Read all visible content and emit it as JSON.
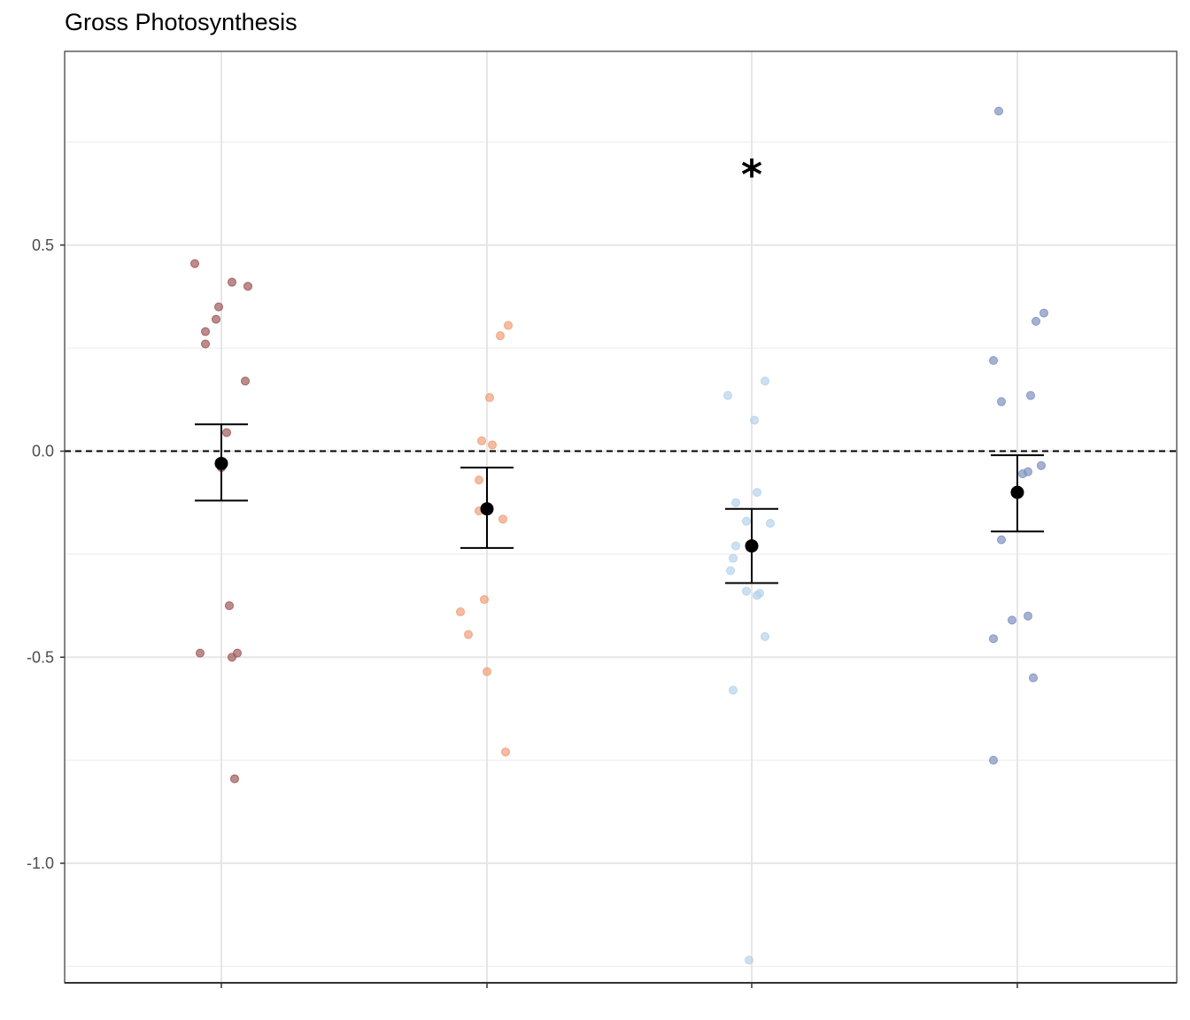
{
  "chart_data": {
    "type": "scatter",
    "title": "Gross Photosynthesis",
    "xlabel": "",
    "ylabel": "",
    "ylim": [
      -1.29,
      0.97
    ],
    "y_ticks": [
      0.5,
      0.0,
      -0.5,
      -1.0
    ],
    "y_tick_labels": [
      "0.5",
      "0.0",
      "-0.5",
      "-1.0"
    ],
    "grid": true,
    "reference_line": {
      "y": 0.0,
      "style": "dashed"
    },
    "categories": [
      "",
      "",
      "",
      ""
    ],
    "series": [
      {
        "color": "#a05a5a",
        "points": [
          0.455,
          0.41,
          0.4,
          0.35,
          0.32,
          0.29,
          0.26,
          0.17,
          0.045,
          -0.04,
          -0.375,
          -0.49,
          -0.49,
          -0.5,
          -0.795
        ],
        "jitter": [
          -0.1,
          0.04,
          0.1,
          -0.01,
          -0.02,
          -0.06,
          -0.06,
          0.09,
          0.02,
          0.0,
          0.03,
          -0.08,
          0.06,
          0.04,
          0.05
        ],
        "mean": -0.03,
        "error_low": -0.12,
        "error_high": 0.065
      },
      {
        "color": "#f0a07a",
        "points": [
          0.305,
          0.28,
          0.13,
          0.025,
          0.015,
          -0.07,
          -0.145,
          -0.165,
          -0.36,
          -0.39,
          -0.445,
          -0.535,
          -0.73
        ],
        "jitter": [
          0.08,
          0.05,
          0.01,
          -0.02,
          0.02,
          -0.03,
          -0.03,
          0.06,
          -0.01,
          -0.1,
          -0.07,
          0.0,
          0.07
        ],
        "mean": -0.14,
        "error_low": -0.235,
        "error_high": -0.04
      },
      {
        "color": "#b7d3ec",
        "points": [
          0.17,
          0.135,
          0.075,
          -0.1,
          -0.125,
          -0.17,
          -0.175,
          -0.23,
          -0.26,
          -0.29,
          -0.34,
          -0.345,
          -0.35,
          -0.45,
          -0.58,
          -1.235
        ],
        "jitter": [
          0.05,
          -0.09,
          0.01,
          0.02,
          -0.06,
          -0.02,
          0.07,
          -0.06,
          -0.07,
          -0.08,
          -0.02,
          0.03,
          0.02,
          0.05,
          -0.07,
          -0.01
        ],
        "mean": -0.23,
        "error_low": -0.32,
        "error_high": -0.14
      },
      {
        "color": "#7f92c0",
        "points": [
          0.825,
          0.335,
          0.315,
          0.22,
          0.135,
          0.12,
          -0.035,
          -0.05,
          -0.055,
          -0.215,
          -0.4,
          -0.41,
          -0.455,
          -0.55,
          -0.75
        ],
        "jitter": [
          -0.07,
          0.1,
          0.07,
          -0.09,
          0.05,
          -0.06,
          0.09,
          0.04,
          0.02,
          -0.06,
          0.04,
          -0.02,
          -0.09,
          0.06,
          -0.09
        ],
        "mean": -0.1,
        "error_low": -0.195,
        "error_high": -0.01
      }
    ],
    "annotations": [
      {
        "text": "*",
        "category_index": 2,
        "y": 0.7
      }
    ]
  }
}
